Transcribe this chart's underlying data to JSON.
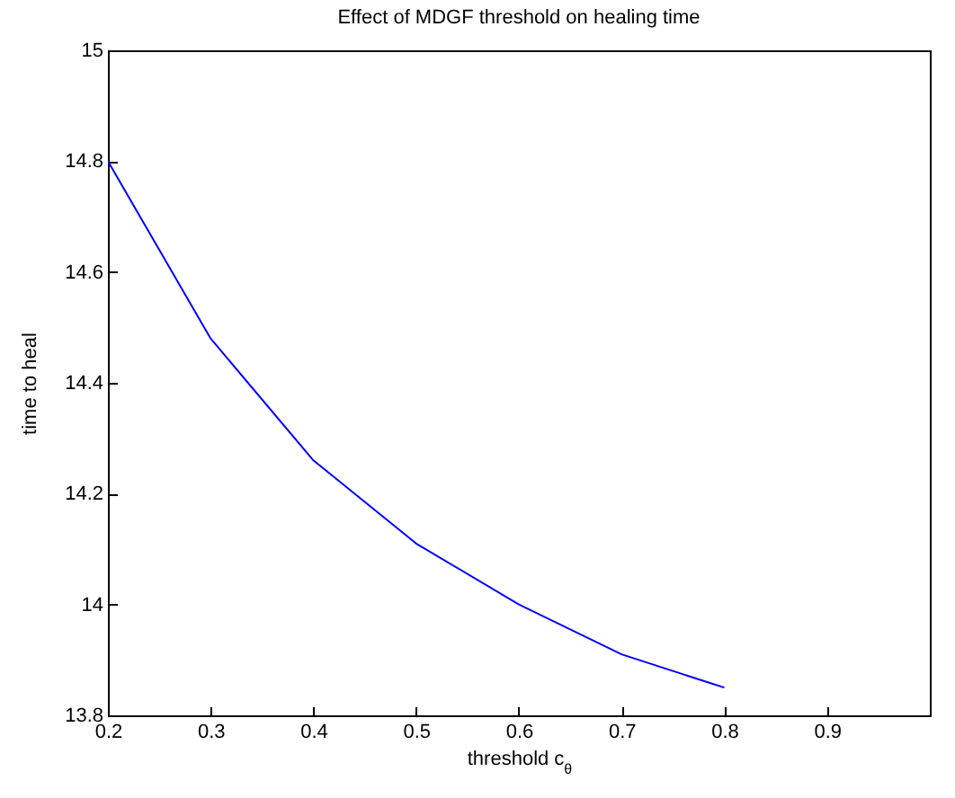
{
  "chart_data": {
    "type": "line",
    "title": "Effect of MDGF threshold on healing time",
    "xlabel": "threshold c$_{θ}$",
    "ylabel": "time to heal",
    "x": [
      0.2,
      0.3,
      0.4,
      0.5,
      0.6,
      0.7,
      0.8
    ],
    "series": [
      {
        "color": "#0000ff",
        "values": [
          14.8,
          14.48,
          14.26,
          14.11,
          14.0,
          13.91,
          13.85
        ]
      }
    ],
    "xlim": [
      0.2,
      1
    ],
    "xticks": [
      0.2,
      0.3,
      0.4,
      0.5,
      0.6,
      0.7,
      0.8,
      0.9
    ],
    "ylim": [
      13.8,
      15
    ],
    "yticks": [
      13.8,
      14,
      14.2,
      14.4,
      14.6,
      14.8,
      15
    ],
    "grid": false,
    "legend": false,
    "marker": "none",
    "line_style": "solid"
  }
}
